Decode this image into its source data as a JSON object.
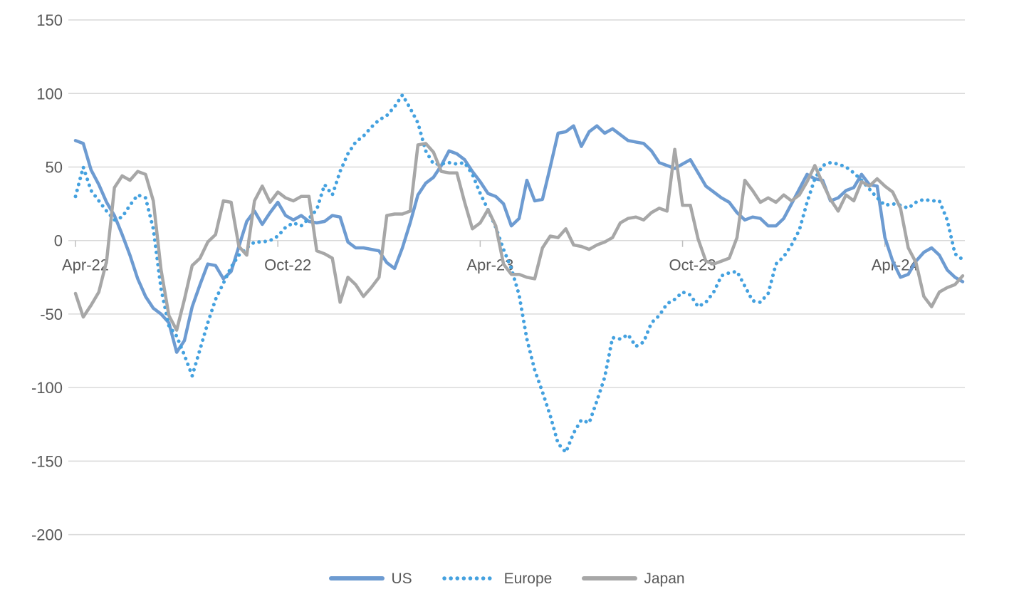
{
  "page": {
    "background": "#ffffff"
  },
  "styles": {
    "grid_color": "#d9d9d9",
    "tick_color": "#bfbfbf",
    "label_color": "#595959",
    "background": "#ffffff"
  },
  "chart_data": {
    "type": "line",
    "title": "",
    "x_unit": "week",
    "x_axis": {
      "tick_labels": [
        "Apr-22",
        "Oct-22",
        "Apr-23",
        "Oct-23",
        "Apr-24"
      ],
      "tick_week_indices": [
        0,
        26,
        52,
        78,
        104
      ],
      "weeks_total": 115
    },
    "y_axis": {
      "ticks": [
        150,
        100,
        50,
        0,
        -50,
        -100,
        -150,
        -200
      ],
      "range": [
        -200,
        150
      ],
      "label": ""
    },
    "grid": "horizontal",
    "legend": {
      "position": "bottom",
      "entries": [
        "US",
        "Europe",
        "Japan"
      ]
    },
    "series": [
      {
        "name": "US",
        "color": "#6d9bd1",
        "line_style": "solid",
        "values": [
          68,
          66,
          48,
          38,
          26,
          17,
          4,
          -10,
          -26,
          -38,
          -46,
          -50,
          -56,
          -76,
          -68,
          -45,
          -30,
          -16,
          -17,
          -26,
          -21,
          -4,
          13,
          20,
          11,
          19,
          26,
          17,
          14,
          17,
          13,
          12,
          13,
          17,
          16,
          -1,
          -5,
          -5,
          -6,
          -7,
          -15,
          -19,
          -5,
          12,
          31,
          39,
          43,
          51,
          61,
          59,
          55,
          47,
          40,
          32,
          30,
          25,
          10,
          15,
          41,
          27,
          28,
          50,
          73,
          74,
          78,
          64,
          74,
          78,
          73,
          76,
          72,
          68,
          67,
          66,
          61,
          53,
          51,
          49,
          52,
          55,
          46,
          37,
          33,
          29,
          26,
          19,
          14,
          16,
          15,
          10,
          10,
          15,
          25,
          35,
          45,
          42,
          41,
          27,
          29,
          34,
          36,
          45,
          38,
          37,
          2,
          -14,
          -25,
          -23,
          -14,
          -8,
          -5,
          -10,
          -20,
          -25,
          -28
        ]
      },
      {
        "name": "Europe",
        "color": "#44a1df",
        "line_style": "dotted",
        "values": [
          30,
          50,
          34,
          27,
          20,
          14,
          16,
          24,
          31,
          29,
          8,
          -33,
          -58,
          -65,
          -78,
          -92,
          -74,
          -56,
          -40,
          -29,
          -18,
          -10,
          -5,
          -1,
          -1,
          0,
          3,
          9,
          12,
          10,
          15,
          21,
          38,
          31,
          47,
          59,
          67,
          71,
          77,
          82,
          85,
          91,
          99,
          90,
          80,
          61,
          52,
          52,
          53,
          52,
          53,
          45,
          32,
          21,
          9,
          -6,
          -19,
          -37,
          -67,
          -88,
          -103,
          -119,
          -138,
          -144,
          -131,
          -122,
          -124,
          -109,
          -93,
          -66,
          -67,
          -64,
          -72,
          -69,
          -56,
          -51,
          -43,
          -40,
          -35,
          -37,
          -45,
          -42,
          -35,
          -24,
          -22,
          -21,
          -31,
          -41,
          -42,
          -36,
          -16,
          -11,
          -3,
          7,
          26,
          42,
          51,
          53,
          52,
          50,
          46,
          41,
          35,
          29,
          24,
          25,
          24,
          22,
          26,
          28,
          27,
          27,
          14,
          -9,
          -13
        ]
      },
      {
        "name": "Japan",
        "color": "#a7a7a7",
        "line_style": "solid",
        "values": [
          -36,
          -52,
          -44,
          -35,
          -14,
          36,
          44,
          41,
          47,
          45,
          27,
          -20,
          -51,
          -61,
          -40,
          -17,
          -12,
          -1,
          4,
          27,
          26,
          -4,
          -10,
          27,
          37,
          26,
          33,
          29,
          27,
          30,
          30,
          -7,
          -9,
          -12,
          -42,
          -25,
          -30,
          -38,
          -32,
          -25,
          17,
          18,
          18,
          20,
          65,
          66,
          60,
          47,
          46,
          46,
          26,
          8,
          12,
          21,
          10,
          -16,
          -23,
          -23,
          -25,
          -26,
          -5,
          3,
          2,
          8,
          -3,
          -4,
          -6,
          -3,
          -1,
          2,
          12,
          15,
          16,
          14,
          19,
          22,
          20,
          62,
          24,
          24,
          1,
          -14,
          -16,
          -14,
          -12,
          2,
          41,
          34,
          26,
          29,
          26,
          31,
          27,
          31,
          40,
          51,
          39,
          28,
          20,
          31,
          27,
          40,
          37,
          42,
          37,
          33,
          22,
          -5,
          -15,
          -38,
          -45,
          -35,
          -32,
          -30,
          -24
        ]
      }
    ]
  }
}
